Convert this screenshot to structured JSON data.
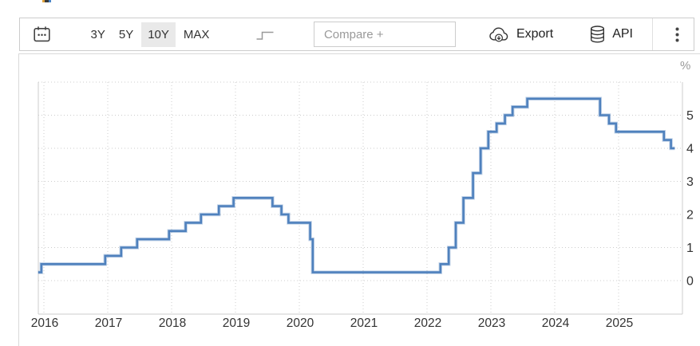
{
  "top_fragment": {
    "colors": [
      "#e0a23c",
      "#3a3a3a",
      "#4a86c8"
    ]
  },
  "toolbar": {
    "ranges": [
      {
        "label": "3Y",
        "selected": false
      },
      {
        "label": "5Y",
        "selected": false
      },
      {
        "label": "10Y",
        "selected": true
      },
      {
        "label": "MAX",
        "selected": false
      }
    ],
    "compare_placeholder": "Compare +",
    "export_label": "Export",
    "api_label": "API",
    "icons": {
      "calendar": "calendar-icon",
      "chart_type": "step-line-icon",
      "export": "cloud-download-icon",
      "api": "database-icon",
      "menu": "kebab-menu-icon"
    }
  },
  "chart_data": {
    "type": "line",
    "step": "after",
    "unit_label": "%",
    "grid": "dotted",
    "legend": "none",
    "x_ticks": [
      2016,
      2017,
      2018,
      2019,
      2020,
      2021,
      2022,
      2023,
      2024,
      2025
    ],
    "y_ticks": [
      0,
      1,
      2,
      3,
      4,
      5
    ],
    "xlim": [
      2015.91,
      2025.88
    ],
    "ylim": [
      -1,
      6
    ],
    "series": [
      {
        "color": "#4f81bd",
        "points": [
          [
            2015.91,
            0.25
          ],
          [
            2015.96,
            0.5
          ],
          [
            2016.96,
            0.75
          ],
          [
            2017.21,
            1.0
          ],
          [
            2017.46,
            1.25
          ],
          [
            2017.96,
            1.5
          ],
          [
            2018.22,
            1.75
          ],
          [
            2018.46,
            2.0
          ],
          [
            2018.74,
            2.25
          ],
          [
            2018.97,
            2.5
          ],
          [
            2019.58,
            2.25
          ],
          [
            2019.72,
            2.0
          ],
          [
            2019.83,
            1.75
          ],
          [
            2020.17,
            1.25
          ],
          [
            2020.21,
            0.25
          ],
          [
            2022.21,
            0.5
          ],
          [
            2022.34,
            1.0
          ],
          [
            2022.45,
            1.75
          ],
          [
            2022.57,
            2.5
          ],
          [
            2022.72,
            3.25
          ],
          [
            2022.84,
            4.0
          ],
          [
            2022.96,
            4.5
          ],
          [
            2023.09,
            4.75
          ],
          [
            2023.22,
            5.0
          ],
          [
            2023.34,
            5.25
          ],
          [
            2023.57,
            5.5
          ],
          [
            2024.71,
            5.0
          ],
          [
            2024.85,
            4.75
          ],
          [
            2024.96,
            4.5
          ],
          [
            2025.71,
            4.25
          ],
          [
            2025.82,
            4.0
          ]
        ]
      }
    ]
  },
  "colors": {
    "line": "#4f81bd",
    "selected_range_bg": "#e9e9e9",
    "border": "#cccccc",
    "grid": "#cccccc",
    "text": "#333333",
    "muted": "#999999"
  }
}
